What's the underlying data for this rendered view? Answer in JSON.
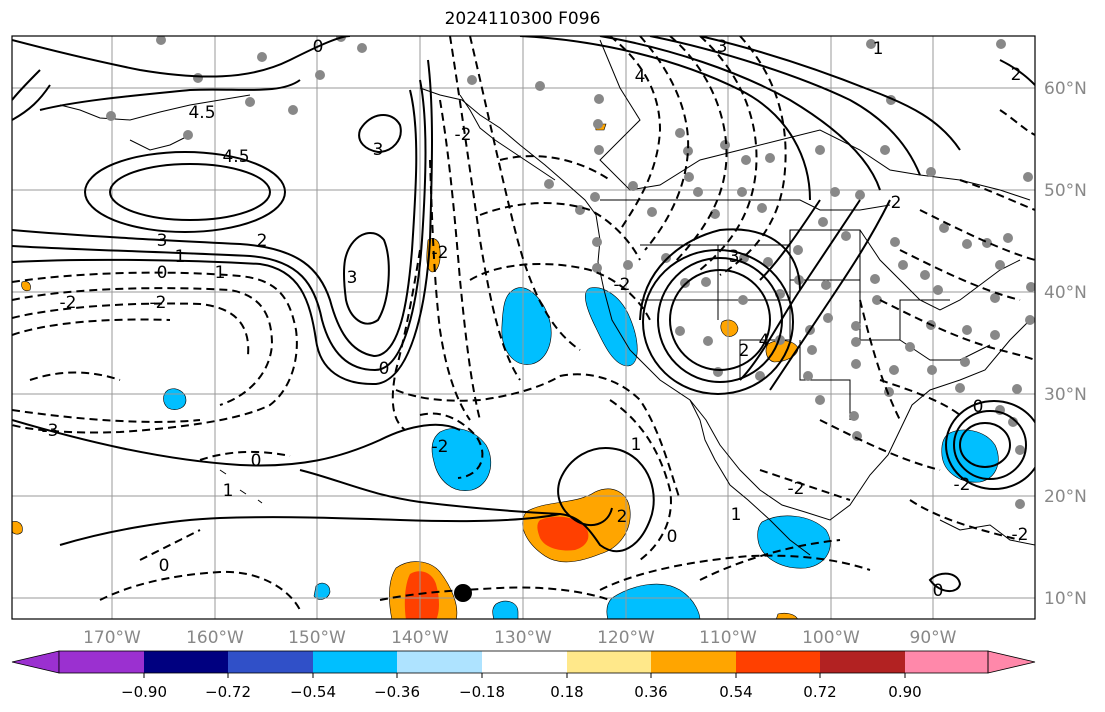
{
  "title": "2024110300 F096",
  "lon_labels": [
    "170°W",
    "160°W",
    "150°W",
    "140°W",
    "130°W",
    "120°W",
    "110°W",
    "100°W",
    "90°W"
  ],
  "lat_labels": [
    "60°N",
    "50°N",
    "40°N",
    "30°N",
    "20°N",
    "10°N"
  ],
  "colorbar": {
    "colors": [
      "#9b30d0",
      "#000080",
      "#3050c8",
      "#00bfff",
      "#aee3ff",
      "#ffffff",
      "#ffe88a",
      "#ffa500",
      "#ff4000",
      "#b22222",
      "#ff88aa"
    ],
    "ticks": [
      "−0.90",
      "−0.72",
      "−0.54",
      "−0.36",
      "−0.18",
      "0.18",
      "0.36",
      "0.54",
      "0.72",
      "0.90"
    ]
  },
  "contour_labels": {
    "c_neg2_west": "-2",
    "c_neg2_west_b": "-2",
    "c_0_west": "0",
    "c_1_west": "1",
    "c_1_west_b": "1",
    "c_3_north": "3",
    "c_2_north": "2",
    "c_45": "4.5",
    "c_45_b": "4.5",
    "c_3_gyre": "3",
    "c_3_gyre_b": "3",
    "c_neg3_sw": "-3",
    "c_0_sw": "0",
    "c_1_haw": "1",
    "c_0_ne": "0",
    "c_neg2_coast": "-2",
    "c_neg2_mid": "-2",
    "c_neg2_blue": "-2",
    "c_1_low": "1",
    "c_2_low": "2",
    "c_0_low": "0",
    "c_neg2_mex": "-2",
    "c_1_mex": "1",
    "c_3_sw": "3",
    "c_2_sw": "2",
    "c_4_sw": "4",
    "c_3_top": "3",
    "c_4_top": "4",
    "c_1_top": "1",
    "c_2_ne": "2",
    "c_2_ne_b": "2",
    "c_neg2_east": "-2",
    "c_0_gulf": "0",
    "c_neg2_gulf": "-2",
    "c_0_south": "0",
    "c_0_south_b": "0",
    "c_0_ak": "0",
    "c_neg2_ak": "-2"
  },
  "shading_legend": {
    "cool_color": "#00bfff",
    "warm_color": "#ffa500",
    "hot_color": "#ff4000",
    "station_color": "#888888"
  }
}
